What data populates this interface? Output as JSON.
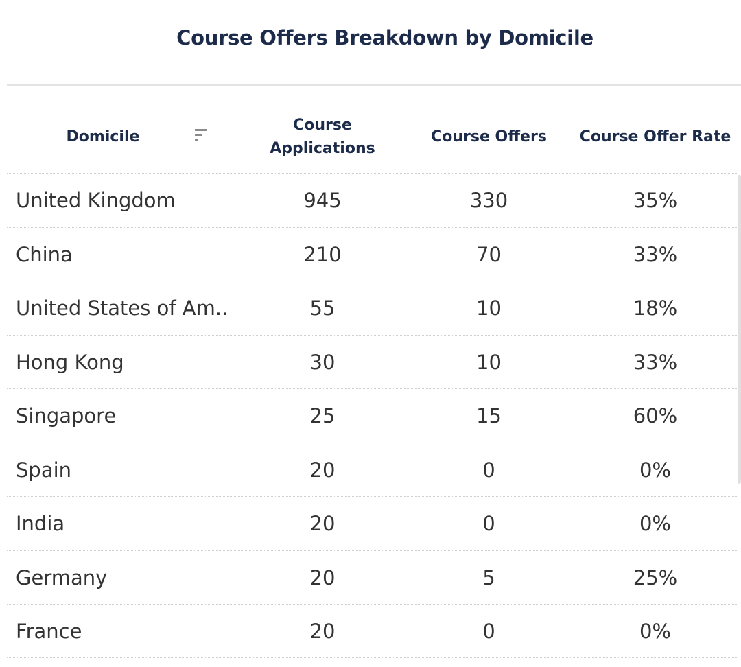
{
  "title": "Course Offers Breakdown by Domicile",
  "columns": {
    "domicile": "Domicile",
    "applications_line1": "Course",
    "applications_line2": "Applications",
    "offers": "Course Offers",
    "rate": "Course Offer Rate"
  },
  "sort_icon": "sort-descending-icon",
  "rows": [
    {
      "domicile": "United Kingdom",
      "applications": "945",
      "offers": "330",
      "rate": "35%"
    },
    {
      "domicile": "China",
      "applications": "210",
      "offers": "70",
      "rate": "33%"
    },
    {
      "domicile": "United States of Am..",
      "applications": "55",
      "offers": "10",
      "rate": "18%"
    },
    {
      "domicile": "Hong Kong",
      "applications": "30",
      "offers": "10",
      "rate": "33%"
    },
    {
      "domicile": "Singapore",
      "applications": "25",
      "offers": "15",
      "rate": "60%"
    },
    {
      "domicile": "Spain",
      "applications": "20",
      "offers": "0",
      "rate": "0%"
    },
    {
      "domicile": "India",
      "applications": "20",
      "offers": "0",
      "rate": "0%"
    },
    {
      "domicile": "Germany",
      "applications": "20",
      "offers": "5",
      "rate": "25%"
    },
    {
      "domicile": "France",
      "applications": "20",
      "offers": "0",
      "rate": "0%"
    }
  ],
  "chart_data": {
    "type": "table",
    "title": "Course Offers Breakdown by Domicile",
    "columns": [
      "Domicile",
      "Course Applications",
      "Course Offers",
      "Course Offer Rate"
    ],
    "rows": [
      [
        "United Kingdom",
        945,
        330,
        "35%"
      ],
      [
        "China",
        210,
        70,
        "33%"
      ],
      [
        "United States of Am..",
        55,
        10,
        "18%"
      ],
      [
        "Hong Kong",
        30,
        10,
        "33%"
      ],
      [
        "Singapore",
        25,
        15,
        "60%"
      ],
      [
        "Spain",
        20,
        0,
        "0%"
      ],
      [
        "India",
        20,
        0,
        "0%"
      ],
      [
        "Germany",
        20,
        5,
        "25%"
      ],
      [
        "France",
        20,
        0,
        "0%"
      ]
    ]
  }
}
